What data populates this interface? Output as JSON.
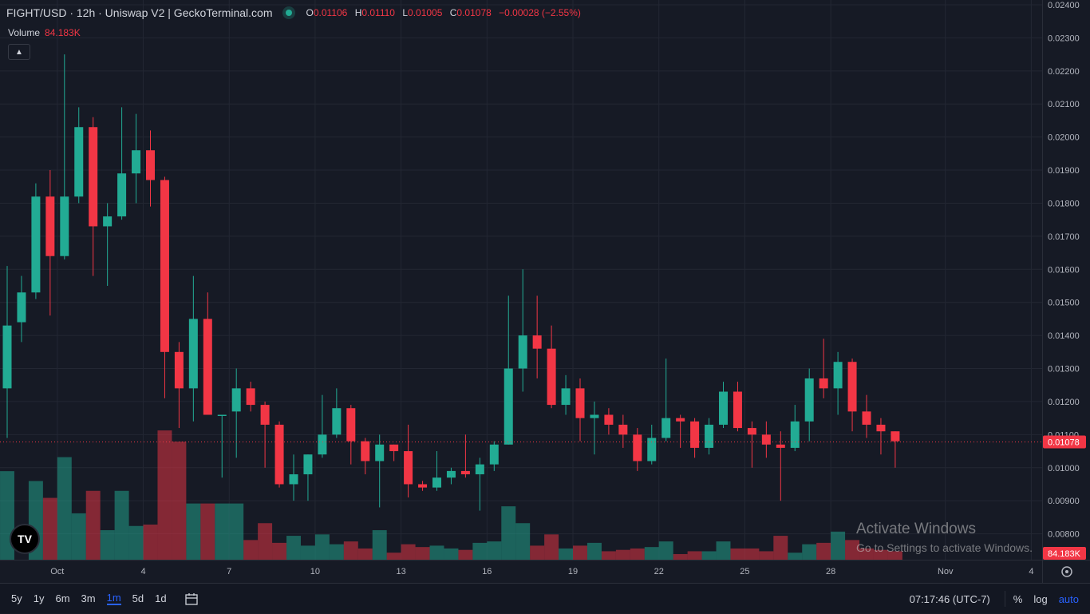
{
  "header": {
    "title": "FIGHT/USD · 12h · Uniswap V2 | GeckoTerminal.com",
    "ohlc": {
      "o_label": "O",
      "o": "0.01106",
      "h_label": "H",
      "h": "0.01110",
      "l_label": "L",
      "l": "0.01005",
      "c_label": "C",
      "c": "0.01078",
      "change": "−0.00028 (−2.55%)"
    },
    "volume_label": "Volume",
    "volume_value": "84.183K"
  },
  "logo_text": "TV",
  "watermark": {
    "line1": "Activate Windows",
    "line2": "Go to Settings to activate Windows."
  },
  "toolbar": {
    "timeframes": [
      "5y",
      "1y",
      "6m",
      "3m",
      "1m",
      "5d",
      "1d"
    ],
    "active": "1m",
    "time": "07:17:46 (UTC-7)",
    "opt_percent": "%",
    "opt_log": "log",
    "opt_auto": "auto"
  },
  "colors": {
    "up": "#22ab94",
    "down": "#f23645",
    "background": "#161a25",
    "grid": "#232733"
  },
  "chart_data": {
    "type": "candlestick",
    "interval": "12h",
    "price_axis": {
      "ticks": [
        "0.02400",
        "0.02300",
        "0.02200",
        "0.02100",
        "0.02000",
        "0.01900",
        "0.01800",
        "0.01700",
        "0.01600",
        "0.01500",
        "0.01400",
        "0.01300",
        "0.01200",
        "0.01100",
        "0.01000",
        "0.00900",
        "0.00800"
      ],
      "range": [
        0.0077,
        0.024
      ],
      "last_price": "0.01078",
      "last_volume": "84.183K"
    },
    "time_axis": {
      "labels": [
        {
          "label": "Oct",
          "index": 3.5
        },
        {
          "label": "4",
          "index": 9.5
        },
        {
          "label": "7",
          "index": 15.5
        },
        {
          "label": "10",
          "index": 21.5
        },
        {
          "label": "13",
          "index": 27.5
        },
        {
          "label": "16",
          "index": 33.5
        },
        {
          "label": "19",
          "index": 39.5
        },
        {
          "label": "22",
          "index": 45.5
        },
        {
          "label": "25",
          "index": 51.5
        },
        {
          "label": "28",
          "index": 57.5
        },
        {
          "label": "Nov",
          "index": 65.5
        },
        {
          "label": "4",
          "index": 71.5
        }
      ]
    },
    "candles": [
      {
        "o": 0.0124,
        "h": 0.0161,
        "l": 0.0109,
        "c": 0.0143,
        "v": 0.63
      },
      {
        "o": 0.0144,
        "h": 0.0158,
        "l": 0.0138,
        "c": 0.0153,
        "v": 0.0
      },
      {
        "o": 0.0153,
        "h": 0.0186,
        "l": 0.0151,
        "c": 0.0182,
        "v": 0.56
      },
      {
        "o": 0.0182,
        "h": 0.019,
        "l": 0.0146,
        "c": 0.0164,
        "v": 0.44
      },
      {
        "o": 0.0164,
        "h": 0.0225,
        "l": 0.0163,
        "c": 0.0182,
        "v": 0.73
      },
      {
        "o": 0.0182,
        "h": 0.0209,
        "l": 0.018,
        "c": 0.0203,
        "v": 0.33
      },
      {
        "o": 0.0203,
        "h": 0.0206,
        "l": 0.0158,
        "c": 0.0173,
        "v": 0.49
      },
      {
        "o": 0.0173,
        "h": 0.018,
        "l": 0.0155,
        "c": 0.0176,
        "v": 0.21
      },
      {
        "o": 0.0176,
        "h": 0.0209,
        "l": 0.0175,
        "c": 0.0189,
        "v": 0.49
      },
      {
        "o": 0.0189,
        "h": 0.0207,
        "l": 0.018,
        "c": 0.0196,
        "v": 0.24
      },
      {
        "o": 0.0196,
        "h": 0.0202,
        "l": 0.0179,
        "c": 0.0187,
        "v": 0.25
      },
      {
        "o": 0.0187,
        "h": 0.0188,
        "l": 0.0121,
        "c": 0.0135,
        "v": 0.92
      },
      {
        "o": 0.0135,
        "h": 0.0138,
        "l": 0.0112,
        "c": 0.0124,
        "v": 0.84
      },
      {
        "o": 0.0124,
        "h": 0.0158,
        "l": 0.0114,
        "c": 0.0145,
        "v": 0.4
      },
      {
        "o": 0.0145,
        "h": 0.0153,
        "l": 0.0116,
        "c": 0.0116,
        "v": 0.4
      },
      {
        "o": 0.0116,
        "h": 0.0116,
        "l": 0.0097,
        "c": 0.0116,
        "v": 0.4
      },
      {
        "o": 0.0117,
        "h": 0.013,
        "l": 0.0103,
        "c": 0.0124,
        "v": 0.4
      },
      {
        "o": 0.0124,
        "h": 0.0126,
        "l": 0.0117,
        "c": 0.0119,
        "v": 0.14
      },
      {
        "o": 0.0119,
        "h": 0.012,
        "l": 0.01,
        "c": 0.0113,
        "v": 0.26
      },
      {
        "o": 0.0113,
        "h": 0.0114,
        "l": 0.0094,
        "c": 0.0095,
        "v": 0.12
      },
      {
        "o": 0.0095,
        "h": 0.0104,
        "l": 0.009,
        "c": 0.0098,
        "v": 0.17
      },
      {
        "o": 0.0098,
        "h": 0.0104,
        "l": 0.009,
        "c": 0.0104,
        "v": 0.1
      },
      {
        "o": 0.0104,
        "h": 0.0122,
        "l": 0.0103,
        "c": 0.011,
        "v": 0.18
      },
      {
        "o": 0.011,
        "h": 0.0124,
        "l": 0.0109,
        "c": 0.0118,
        "v": 0.11
      },
      {
        "o": 0.0118,
        "h": 0.0119,
        "l": 0.0101,
        "c": 0.0108,
        "v": 0.13
      },
      {
        "o": 0.0108,
        "h": 0.0109,
        "l": 0.0098,
        "c": 0.0102,
        "v": 0.08
      },
      {
        "o": 0.0102,
        "h": 0.011,
        "l": 0.0088,
        "c": 0.0107,
        "v": 0.21
      },
      {
        "o": 0.0107,
        "h": 0.0107,
        "l": 0.0102,
        "c": 0.0105,
        "v": 0.05
      },
      {
        "o": 0.0105,
        "h": 0.0113,
        "l": 0.0091,
        "c": 0.0095,
        "v": 0.11
      },
      {
        "o": 0.0095,
        "h": 0.0096,
        "l": 0.0093,
        "c": 0.0094,
        "v": 0.09
      },
      {
        "o": 0.0094,
        "h": 0.0105,
        "l": 0.0093,
        "c": 0.0097,
        "v": 0.1
      },
      {
        "o": 0.0097,
        "h": 0.01,
        "l": 0.0095,
        "c": 0.0099,
        "v": 0.08
      },
      {
        "o": 0.0099,
        "h": 0.011,
        "l": 0.0097,
        "c": 0.0098,
        "v": 0.07
      },
      {
        "o": 0.0098,
        "h": 0.0103,
        "l": 0.0087,
        "c": 0.0101,
        "v": 0.12
      },
      {
        "o": 0.0101,
        "h": 0.0108,
        "l": 0.0099,
        "c": 0.0107,
        "v": 0.13
      },
      {
        "o": 0.0107,
        "h": 0.0152,
        "l": 0.0107,
        "c": 0.013,
        "v": 0.38
      },
      {
        "o": 0.013,
        "h": 0.016,
        "l": 0.0123,
        "c": 0.014,
        "v": 0.26
      },
      {
        "o": 0.014,
        "h": 0.0152,
        "l": 0.0127,
        "c": 0.0136,
        "v": 0.1
      },
      {
        "o": 0.0136,
        "h": 0.0143,
        "l": 0.0118,
        "c": 0.0119,
        "v": 0.18
      },
      {
        "o": 0.0119,
        "h": 0.0128,
        "l": 0.0116,
        "c": 0.0124,
        "v": 0.08
      },
      {
        "o": 0.0124,
        "h": 0.0127,
        "l": 0.0108,
        "c": 0.0115,
        "v": 0.1
      },
      {
        "o": 0.0115,
        "h": 0.012,
        "l": 0.0104,
        "c": 0.0116,
        "v": 0.12
      },
      {
        "o": 0.0116,
        "h": 0.0118,
        "l": 0.011,
        "c": 0.0113,
        "v": 0.06
      },
      {
        "o": 0.0113,
        "h": 0.0116,
        "l": 0.0106,
        "c": 0.011,
        "v": 0.07
      },
      {
        "o": 0.011,
        "h": 0.0112,
        "l": 0.0099,
        "c": 0.0102,
        "v": 0.08
      },
      {
        "o": 0.0102,
        "h": 0.0113,
        "l": 0.0101,
        "c": 0.0109,
        "v": 0.09
      },
      {
        "o": 0.0109,
        "h": 0.0133,
        "l": 0.0108,
        "c": 0.0115,
        "v": 0.13
      },
      {
        "o": 0.0115,
        "h": 0.0116,
        "l": 0.0106,
        "c": 0.0114,
        "v": 0.04
      },
      {
        "o": 0.0114,
        "h": 0.0115,
        "l": 0.0103,
        "c": 0.0106,
        "v": 0.06
      },
      {
        "o": 0.0106,
        "h": 0.0115,
        "l": 0.0104,
        "c": 0.0113,
        "v": 0.06
      },
      {
        "o": 0.0113,
        "h": 0.0126,
        "l": 0.0112,
        "c": 0.0123,
        "v": 0.13
      },
      {
        "o": 0.0123,
        "h": 0.0126,
        "l": 0.0111,
        "c": 0.0112,
        "v": 0.08
      },
      {
        "o": 0.0112,
        "h": 0.0114,
        "l": 0.01,
        "c": 0.011,
        "v": 0.08
      },
      {
        "o": 0.011,
        "h": 0.0114,
        "l": 0.0103,
        "c": 0.0107,
        "v": 0.06
      },
      {
        "o": 0.0107,
        "h": 0.0111,
        "l": 0.009,
        "c": 0.0106,
        "v": 0.17
      },
      {
        "o": 0.0106,
        "h": 0.0119,
        "l": 0.0105,
        "c": 0.0114,
        "v": 0.05
      },
      {
        "o": 0.0114,
        "h": 0.013,
        "l": 0.0108,
        "c": 0.0127,
        "v": 0.11
      },
      {
        "o": 0.0127,
        "h": 0.0139,
        "l": 0.0121,
        "c": 0.0124,
        "v": 0.12
      },
      {
        "o": 0.0124,
        "h": 0.0135,
        "l": 0.0116,
        "c": 0.0132,
        "v": 0.2
      },
      {
        "o": 0.0132,
        "h": 0.0133,
        "l": 0.0111,
        "c": 0.0117,
        "v": 0.14
      },
      {
        "o": 0.0117,
        "h": 0.0122,
        "l": 0.0109,
        "c": 0.0113,
        "v": 0.08
      },
      {
        "o": 0.0113,
        "h": 0.0115,
        "l": 0.0104,
        "c": 0.0111,
        "v": 0.07
      },
      {
        "o": 0.0111,
        "h": 0.0111,
        "l": 0.01,
        "c": 0.0108,
        "v": 0.06
      }
    ]
  }
}
